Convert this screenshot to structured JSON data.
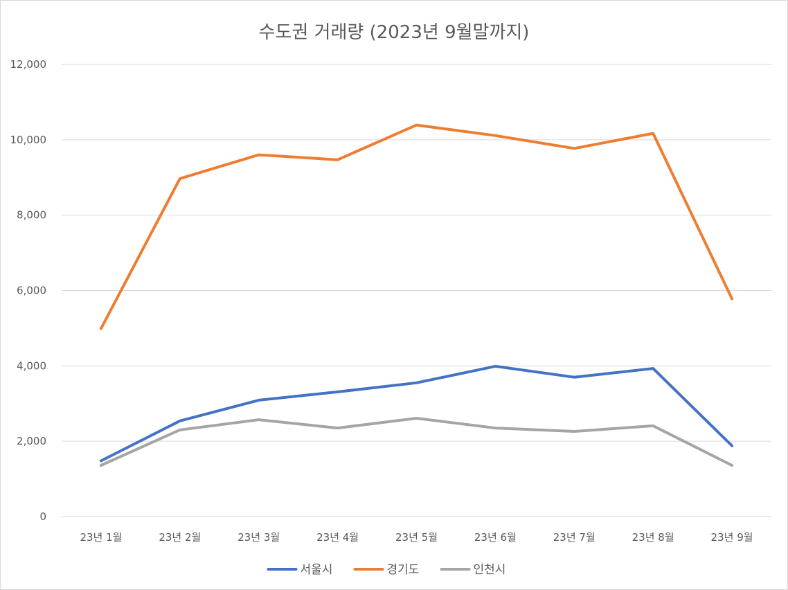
{
  "chart_data": {
    "type": "line",
    "title": "수도권 거래량 (2023년 9월말까지)",
    "categories": [
      "23년 1월",
      "23년 2월",
      "23년 3월",
      "23년 4월",
      "23년 5월",
      "23년 6월",
      "23년 7월",
      "23년 8월",
      "23년 9월"
    ],
    "series": [
      {
        "name": "서울시",
        "color": "#4472c4",
        "values": [
          1480,
          2540,
          3090,
          3310,
          3550,
          3990,
          3700,
          3930,
          1880
        ]
      },
      {
        "name": "경기도",
        "color": "#ed7d31",
        "values": [
          4990,
          8970,
          9600,
          9470,
          10390,
          10110,
          9770,
          10170,
          5780
        ]
      },
      {
        "name": "인천시",
        "color": "#a5a5a5",
        "values": [
          1360,
          2300,
          2570,
          2350,
          2610,
          2350,
          2260,
          2410,
          1360
        ]
      }
    ],
    "ylim": [
      0,
      12000
    ],
    "yticks": [
      "0",
      "2,000",
      "4,000",
      "6,000",
      "8,000",
      "10,000",
      "12,000"
    ],
    "ytick_values": [
      0,
      2000,
      4000,
      6000,
      8000,
      10000,
      12000
    ],
    "grid": true,
    "legend_position": "bottom",
    "xlabel": "",
    "ylabel": ""
  }
}
